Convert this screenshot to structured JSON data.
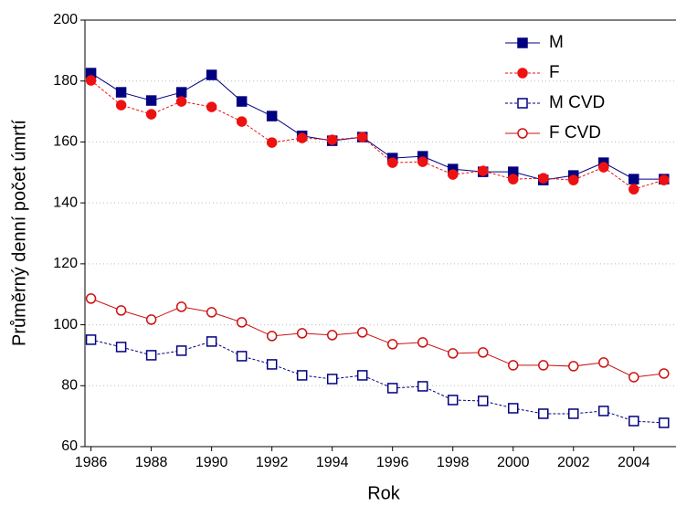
{
  "chart_data": {
    "type": "line",
    "x_label": "Rok",
    "y_label": "Průměrný denní počet úmrtí",
    "x": [
      1986,
      1987,
      1988,
      1989,
      1990,
      1991,
      1992,
      1993,
      1994,
      1995,
      1996,
      1997,
      1998,
      1999,
      2000,
      2001,
      2002,
      2003,
      2004,
      2005
    ],
    "xlim": [
      1985.8,
      2005.4
    ],
    "xticks": [
      1986,
      1988,
      1990,
      1992,
      1994,
      1996,
      1998,
      2000,
      2002,
      2004
    ],
    "ylim": [
      60,
      200
    ],
    "yticks": [
      60,
      80,
      100,
      120,
      140,
      160,
      180,
      200
    ],
    "grid": true,
    "legend": "upper right",
    "series": [
      {
        "name": "M",
        "color": "#000080",
        "marker": "square",
        "filled": true,
        "dashed": false,
        "values": [
          182.6,
          176.3,
          173.6,
          176.3,
          182,
          173.3,
          168.5,
          162,
          160.4,
          161.6,
          154.7,
          155.3,
          151.1,
          150.2,
          150.2,
          147.5,
          149,
          153.2,
          147.8,
          147.8
        ]
      },
      {
        "name": "F",
        "color": "#ee1111",
        "marker": "circle",
        "filled": true,
        "dashed": true,
        "values": [
          180.2,
          172.1,
          169.1,
          173.3,
          171.5,
          166.7,
          159.8,
          161.3,
          160.7,
          161.6,
          153.2,
          153.5,
          149.3,
          150.5,
          147.8,
          148.1,
          147.5,
          151.7,
          144.5,
          147.5
        ]
      },
      {
        "name": "M CVD",
        "color": "#000080",
        "marker": "square",
        "filled": false,
        "dashed": true,
        "values": [
          95.1,
          92.7,
          90,
          91.5,
          94.5,
          89.7,
          87,
          83.4,
          82.2,
          83.4,
          79.2,
          79.8,
          75.3,
          75,
          72.6,
          70.8,
          70.8,
          71.7,
          68.4,
          67.8
        ]
      },
      {
        "name": "F CVD",
        "color": "#cc1111",
        "marker": "circle",
        "filled": false,
        "dashed": false,
        "values": [
          108.6,
          104.7,
          101.7,
          105.9,
          104.1,
          100.8,
          96.3,
          97.2,
          96.6,
          97.5,
          93.6,
          94.2,
          90.6,
          90.9,
          86.7,
          86.7,
          86.4,
          87.6,
          82.8,
          84
        ]
      }
    ]
  }
}
